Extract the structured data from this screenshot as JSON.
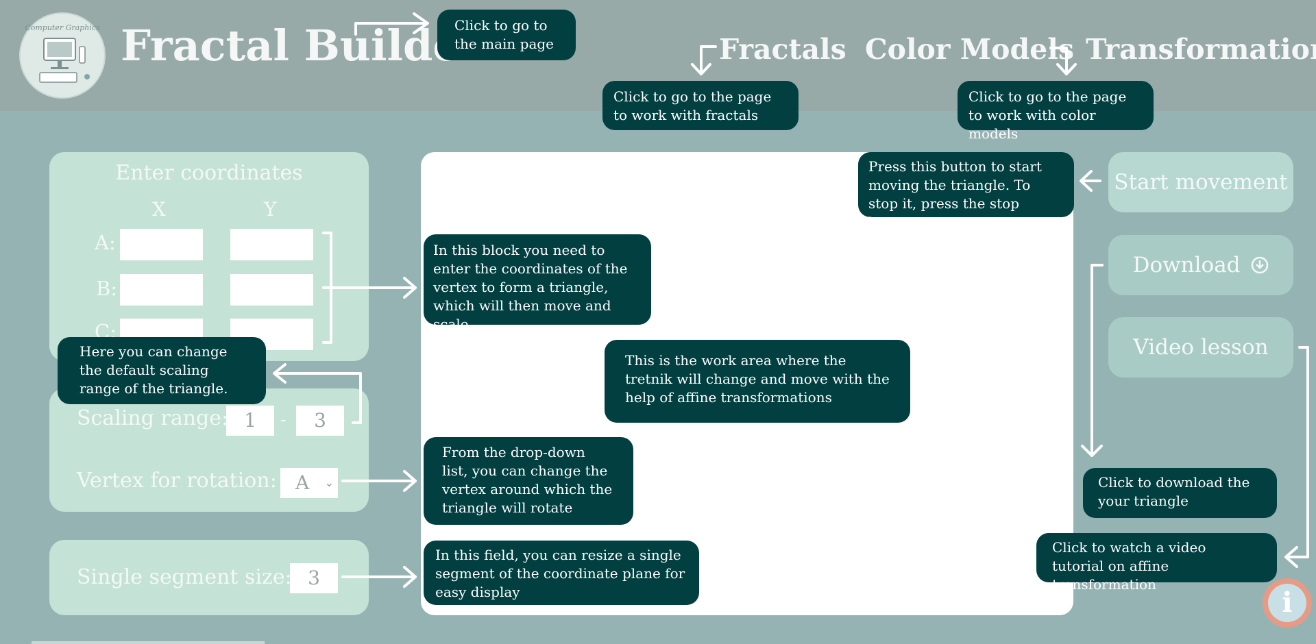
{
  "header": {
    "logo_text": "Computer Graphics",
    "title": "Fractal Builder",
    "nav": [
      "Fractals",
      "Color Models",
      "Transformation"
    ]
  },
  "tips": {
    "main_page": "Click to go to the main page",
    "fractals": "Click to go to the page to work with fractals",
    "color_models": "Click to go to the page to work with color models",
    "start": "Press this button to start moving the triangle. To stop it, press the stop button",
    "coords": "In this block you need to enter the coordinates of the vertex to form a triangle, which will then move and scale",
    "work_area": "This is the work area where the tretnik will change and move with the help of affine transformations",
    "scaling": "Here you can change the default scaling range of the triangle.",
    "rotation": "From the drop-down list, you can change the vertex around which the triangle will rotate",
    "segment": "In this field, you can resize a single segment of the coordinate plane for easy display",
    "download": "Click to download the your triangle",
    "video": "Click to watch a video tutorial on affine transformation"
  },
  "coords_panel": {
    "title": "Enter coordinates",
    "x_header": "X",
    "y_header": "Y",
    "rows": [
      "A:",
      "B:",
      "C:"
    ]
  },
  "scaling": {
    "label": "Scaling range:",
    "min": "1",
    "dash": "-",
    "max": "3"
  },
  "rotation": {
    "label": "Vertex for rotation:",
    "selected": "A"
  },
  "segment": {
    "label": "Single segment size:",
    "value": "3"
  },
  "buttons": {
    "start": "Start movement",
    "download": "Download",
    "video": "Video lesson"
  },
  "icons": {
    "download": "download-circle-icon",
    "info": "info-icon"
  }
}
